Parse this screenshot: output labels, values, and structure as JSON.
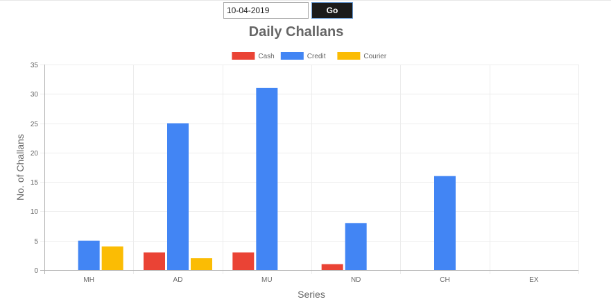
{
  "controls": {
    "date_value": "10-04-2019",
    "go_label": "Go"
  },
  "chart_data": {
    "type": "bar",
    "title": "Daily Challans",
    "xlabel": "Series",
    "ylabel": "No. of Challans",
    "ylim": [
      0,
      35
    ],
    "yticks": [
      0,
      5,
      10,
      15,
      20,
      25,
      30,
      35
    ],
    "categories": [
      "MH",
      "AD",
      "MU",
      "ND",
      "CH",
      "EX"
    ],
    "series": [
      {
        "name": "Cash",
        "color": "#ea4335",
        "values": [
          0,
          3,
          3,
          1,
          0,
          0
        ]
      },
      {
        "name": "Credit",
        "color": "#4285f4",
        "values": [
          5,
          25,
          31,
          8,
          16,
          0
        ]
      },
      {
        "name": "Courier",
        "color": "#fbbc04",
        "values": [
          4,
          2,
          0,
          0,
          0,
          0
        ]
      }
    ],
    "grid": true,
    "legend_position": "top"
  }
}
